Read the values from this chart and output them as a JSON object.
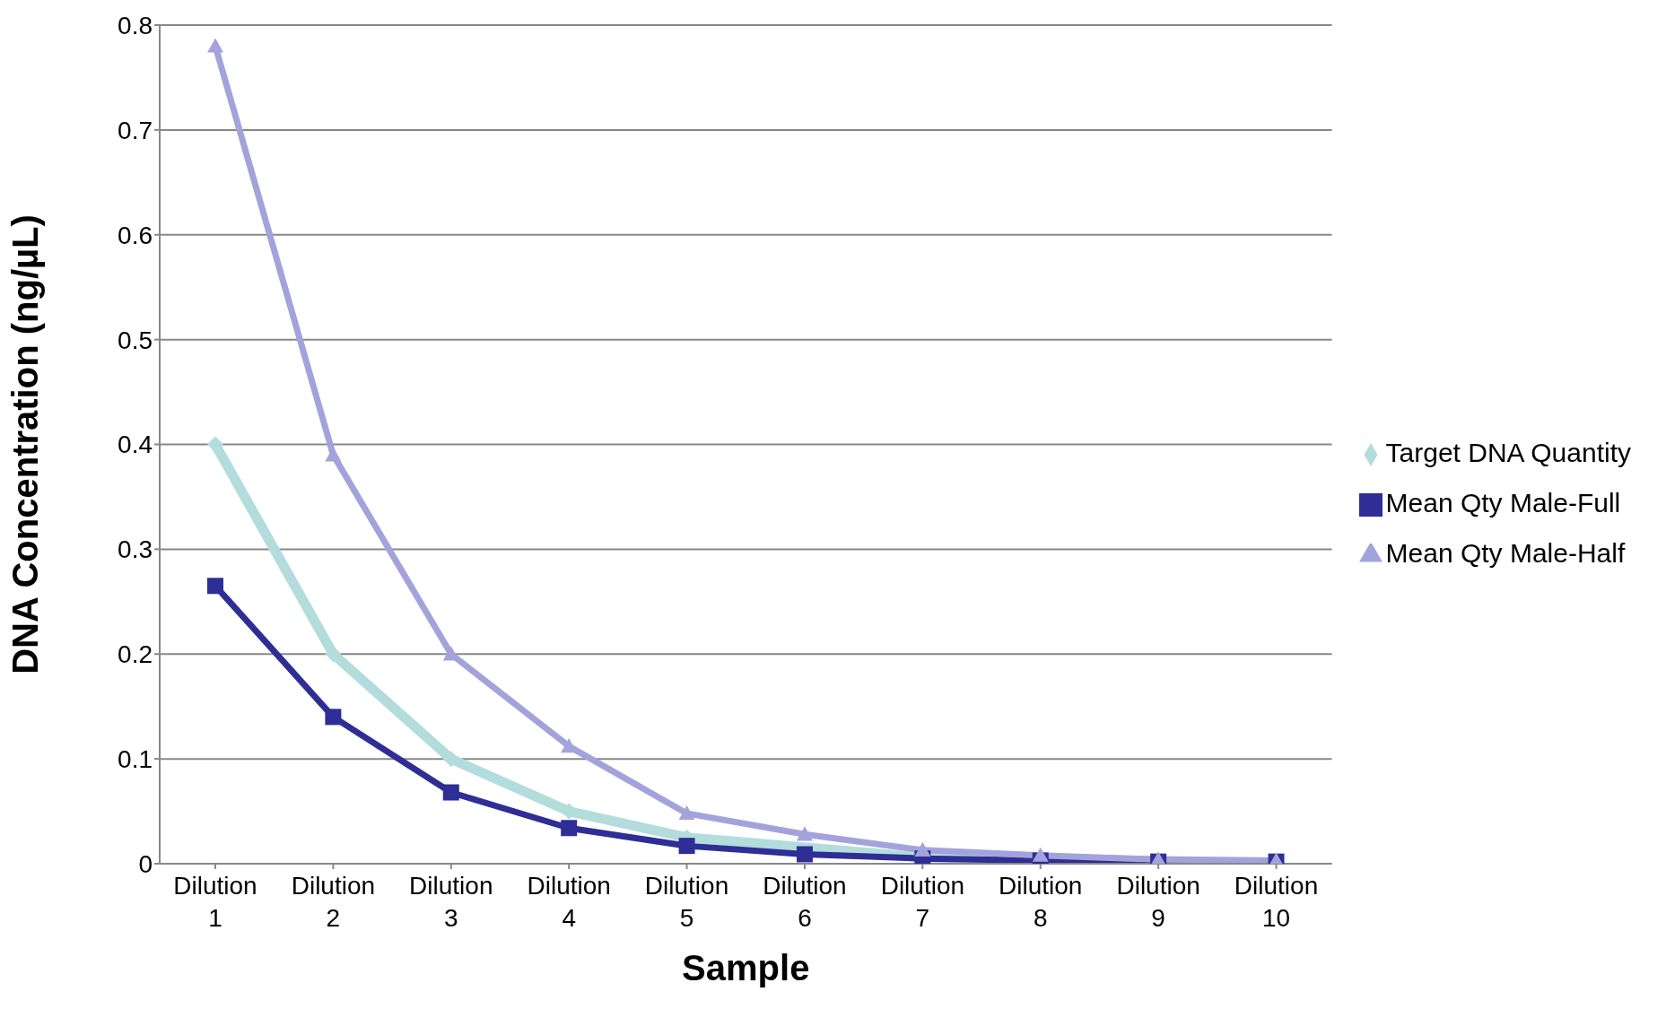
{
  "chart_data": {
    "type": "line",
    "xlabel": "Sample",
    "ylabel": "DNA Concentration (ng/µL)",
    "categories": [
      "Dilution 1",
      "Dilution 2",
      "Dilution 3",
      "Dilution 4",
      "Dilution 5",
      "Dilution 6",
      "Dilution 7",
      "Dilution 8",
      "Dilution 9",
      "Dilution 10"
    ],
    "series": [
      {
        "name": "Target DNA Quantity",
        "color": "#b3dcdc",
        "marker": "diamond",
        "values": [
          0.4,
          0.2,
          0.1,
          0.05,
          0.025,
          null,
          0.006,
          null,
          null,
          0.001
        ]
      },
      {
        "name": "Mean Qty Male-Full",
        "color": "#2e2e96",
        "marker": "square",
        "values": [
          0.265,
          0.14,
          0.068,
          0.034,
          0.017,
          0.009,
          0.005,
          0.003,
          0.002,
          0.002
        ]
      },
      {
        "name": "Mean Qty Male-Half",
        "color": "#a3a3dc",
        "marker": "triangle",
        "values": [
          0.78,
          0.39,
          0.2,
          0.112,
          0.048,
          0.028,
          0.013,
          0.008,
          0.004,
          0.003
        ]
      }
    ],
    "ylim": [
      0,
      0.8
    ],
    "yticks": [
      0,
      0.1,
      0.2,
      0.3,
      0.4,
      0.5,
      0.6,
      0.7,
      0.8
    ],
    "grid": "y",
    "legend": "right"
  }
}
